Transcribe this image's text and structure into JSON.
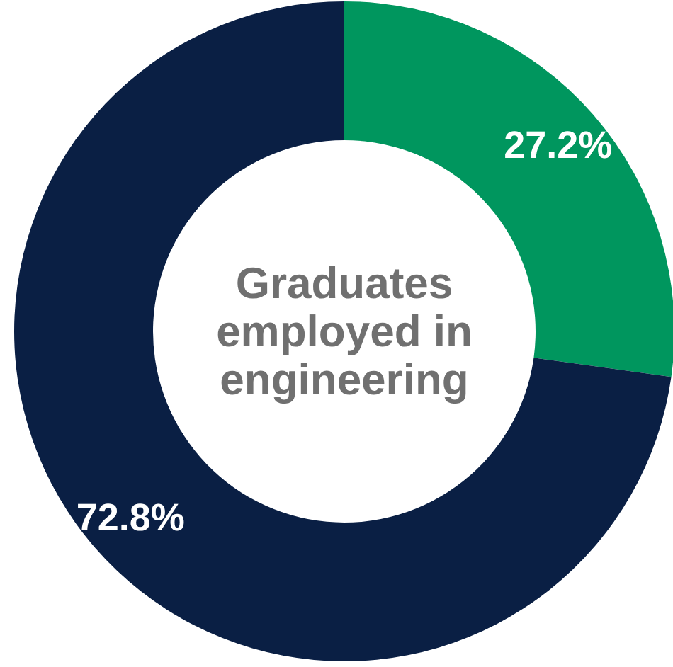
{
  "chart_data": {
    "type": "donut",
    "title": "Graduates employed in engineering",
    "categories": [
      null,
      null
    ],
    "values": [
      27.2,
      72.8
    ],
    "colors": [
      "#00965e",
      "#0a1f44"
    ],
    "value_labels": [
      "27.2%",
      "72.8%"
    ]
  }
}
